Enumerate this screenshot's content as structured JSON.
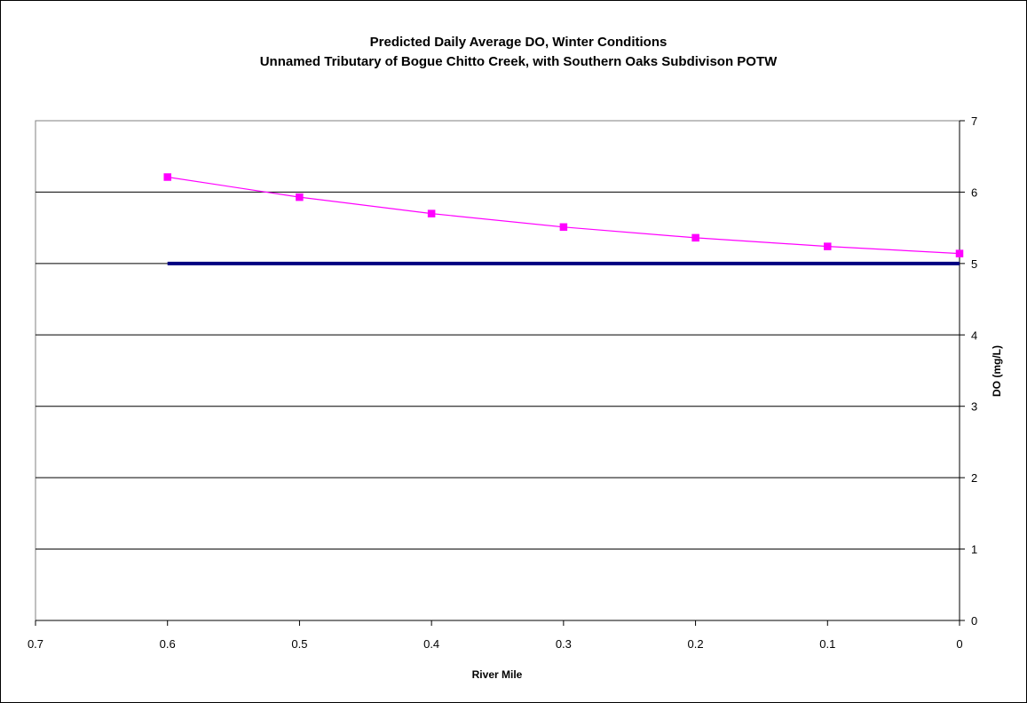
{
  "chart_data": {
    "type": "line",
    "title": "Predicted Daily Average DO, Winter Conditions",
    "subtitle": "Unnamed Tributary of Bogue Chitto Creek, with Southern Oaks Subdivison POTW",
    "xlabel": "River Mile",
    "ylabel": "DO (mg/L)",
    "xlim": [
      0.7,
      0
    ],
    "x_reversed": true,
    "ylim": [
      0,
      7
    ],
    "x_ticks": [
      "0.7",
      "0.6",
      "0.5",
      "0.4",
      "0.3",
      "0.2",
      "0.1",
      "0"
    ],
    "y_ticks": [
      "0",
      "1",
      "2",
      "3",
      "4",
      "5",
      "6",
      "7"
    ],
    "y_axis_side": "right",
    "grid": "horizontal",
    "legend": "none",
    "series": [
      {
        "color": "#ff00ff",
        "marker": "square",
        "x": [
          0.6,
          0.5,
          0.4,
          0.3,
          0.2,
          0.1,
          0.0
        ],
        "y": [
          6.21,
          5.93,
          5.7,
          5.51,
          5.36,
          5.24,
          5.14
        ]
      },
      {
        "color": "#000080",
        "marker": "none",
        "x": [
          0.6,
          0.0
        ],
        "y": [
          5.0,
          5.0
        ]
      }
    ]
  }
}
